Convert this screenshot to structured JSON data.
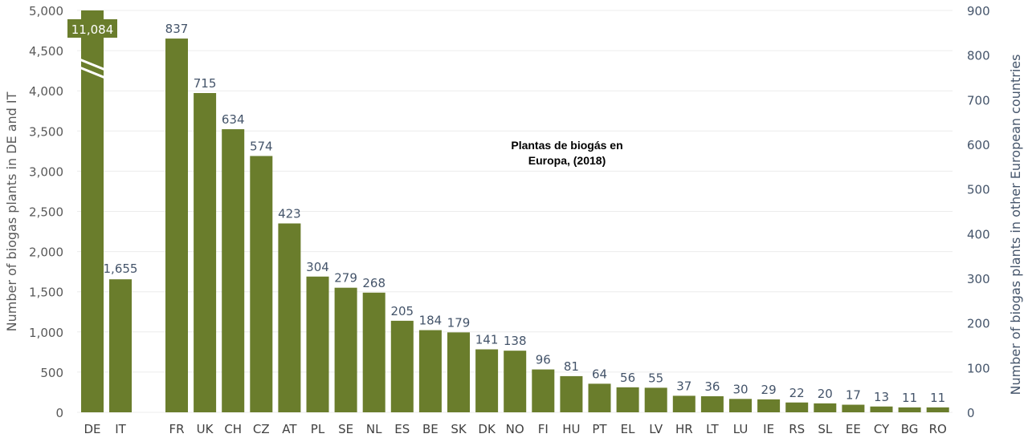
{
  "chart_data": {
    "type": "bar",
    "title": "Plantas de biogás en Europa, (2018)",
    "title_lines": [
      "Plantas de biogás en",
      "Europa, (2018)"
    ],
    "bar_color": "#6a7d2c",
    "ylabel_left": "Number of biogas plants in DE and IT",
    "ylabel_right": "Number of biogas plants in other European countries",
    "ylim_left": [
      0,
      5000
    ],
    "ylim_right": [
      0,
      900
    ],
    "left_ticks": [
      "0",
      "500",
      "1,000",
      "1,500",
      "2,000",
      "2,500",
      "3,000",
      "3,500",
      "4,000",
      "4,500",
      "5,000"
    ],
    "right_ticks": [
      "0",
      "100",
      "200",
      "300",
      "400",
      "500",
      "600",
      "700",
      "800",
      "900"
    ],
    "left_axis_series": {
      "categories": [
        "DE",
        "IT"
      ],
      "values": [
        11084,
        1655
      ],
      "labels": [
        "11,084",
        "1,655"
      ],
      "axis_break": true
    },
    "right_axis_series": {
      "categories": [
        "FR",
        "UK",
        "CH",
        "CZ",
        "AT",
        "PL",
        "SE",
        "NL",
        "ES",
        "BE",
        "SK",
        "DK",
        "NO",
        "FI",
        "HU",
        "PT",
        "EL",
        "LV",
        "HR",
        "LT",
        "LU",
        "IE",
        "RS",
        "SL",
        "EE",
        "CY",
        "BG",
        "RO"
      ],
      "values": [
        837,
        715,
        634,
        574,
        423,
        304,
        279,
        268,
        205,
        184,
        179,
        141,
        138,
        96,
        81,
        64,
        56,
        55,
        37,
        36,
        30,
        29,
        22,
        20,
        17,
        13,
        11,
        11
      ]
    },
    "grid": true
  }
}
